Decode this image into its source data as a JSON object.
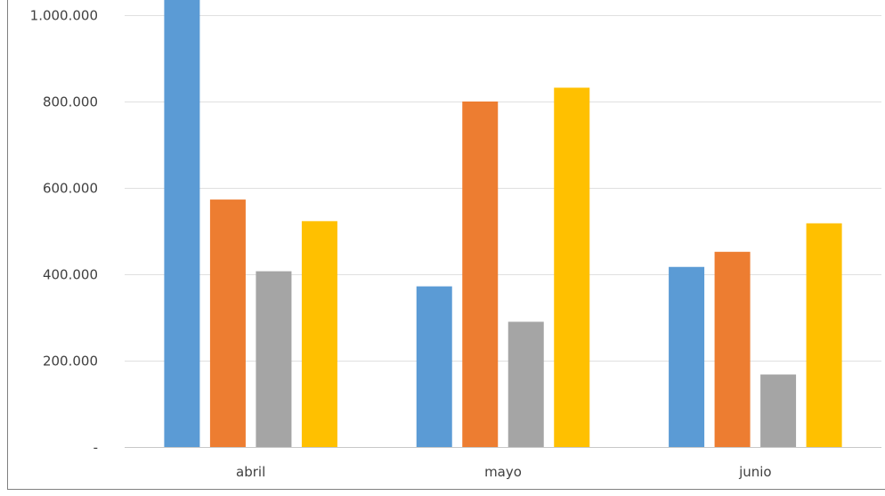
{
  "chart_data": {
    "type": "bar",
    "categories": [
      "abril",
      "mayo",
      "junio"
    ],
    "series": [
      {
        "color": "#5B9BD5",
        "values": [
          1060000,
          372000,
          417000
        ]
      },
      {
        "color": "#ED7D31",
        "values": [
          573000,
          800000,
          452000
        ]
      },
      {
        "color": "#A5A5A5",
        "values": [
          407000,
          290000,
          168000
        ]
      },
      {
        "color": "#FFC000",
        "values": [
          523000,
          832000,
          518000
        ]
      }
    ],
    "y_ticks": [
      {
        "value": 0,
        "label": "-"
      },
      {
        "value": 200000,
        "label": "200.000"
      },
      {
        "value": 400000,
        "label": "400.000"
      },
      {
        "value": 600000,
        "label": "600.000"
      },
      {
        "value": 800000,
        "label": "800.000"
      },
      {
        "value": 1000000,
        "label": "1.000.000"
      }
    ],
    "ylim": [
      0,
      1000000
    ],
    "grid": true,
    "legend": "none",
    "gridline_color": "#E0E0E0",
    "axis_color": "#C8C8C8",
    "frame_color": "#808080"
  }
}
